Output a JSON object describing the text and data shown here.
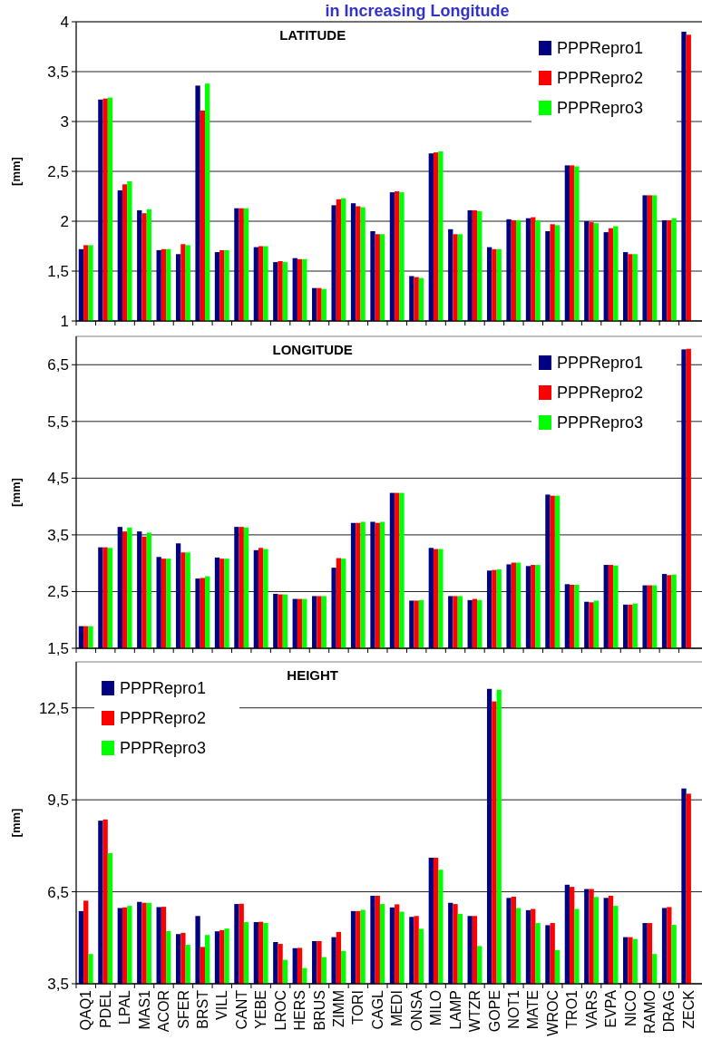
{
  "chart_data": [
    {
      "type": "bar",
      "title": "LATITUDE",
      "ylabel": "[mm]",
      "annotations": [
        "in Increasing Longitude"
      ],
      "categories": [
        null,
        null,
        null,
        null,
        null,
        null,
        null,
        null,
        null,
        null,
        null,
        null,
        null,
        null,
        null,
        null,
        null,
        null,
        null,
        null,
        null,
        null,
        null,
        null,
        null,
        null,
        null,
        null,
        null,
        null,
        null,
        null
      ],
      "series": [
        {
          "name": "PPPRepro1",
          "color": "#000080",
          "values": [
            1.72,
            3.22,
            2.31,
            2.11,
            1.71,
            1.67,
            3.36,
            1.69,
            2.13,
            1.74,
            1.59,
            1.63,
            1.33,
            2.16,
            2.18,
            1.9,
            2.29,
            1.45,
            2.68,
            1.92,
            2.11,
            1.74,
            2.02,
            2.03,
            1.9,
            2.56,
            2.0,
            1.89,
            1.69,
            2.26,
            2.01,
            3.9
          ]
        },
        {
          "name": "PPPRepro2",
          "color": "#ff0000",
          "values": [
            1.76,
            3.23,
            2.37,
            2.08,
            1.72,
            1.77,
            3.11,
            1.71,
            2.13,
            1.75,
            1.6,
            1.62,
            1.33,
            2.22,
            2.15,
            1.87,
            2.3,
            1.44,
            2.69,
            1.87,
            2.11,
            1.72,
            2.01,
            2.04,
            1.97,
            2.56,
            1.99,
            1.93,
            1.67,
            2.26,
            2.01,
            3.87
          ]
        },
        {
          "name": "PPPRepro3",
          "color": "#00ff00",
          "values": [
            1.76,
            3.24,
            2.4,
            2.12,
            1.72,
            1.76,
            3.38,
            1.71,
            2.13,
            1.75,
            1.59,
            1.62,
            1.32,
            2.23,
            2.14,
            1.87,
            2.29,
            1.43,
            2.7,
            1.87,
            2.1,
            1.72,
            2.01,
            2.01,
            1.96,
            2.55,
            1.98,
            1.95,
            1.67,
            2.26,
            2.03,
            null
          ]
        }
      ],
      "ylim": [
        1,
        4
      ],
      "yticks": [
        1,
        {
          "value": 1.5,
          "label": "1,5"
        },
        2,
        {
          "value": 2.5,
          "label": "2,5"
        },
        3,
        {
          "value": 3.5,
          "label": "3,5"
        },
        4
      ],
      "grid": "y",
      "legend": "top right"
    },
    {
      "type": "bar",
      "title": "LONGITUDE",
      "ylabel": "[mm]",
      "categories": [
        null,
        null,
        null,
        null,
        null,
        null,
        null,
        null,
        null,
        null,
        null,
        null,
        null,
        null,
        null,
        null,
        null,
        null,
        null,
        null,
        null,
        null,
        null,
        null,
        null,
        null,
        null,
        null,
        null,
        null,
        null,
        null
      ],
      "series": [
        {
          "name": "PPPRepro1",
          "color": "#000080",
          "values": [
            1.89,
            3.28,
            3.64,
            3.56,
            3.11,
            3.35,
            2.73,
            3.1,
            3.64,
            3.23,
            2.46,
            2.37,
            2.42,
            2.92,
            3.71,
            3.73,
            4.24,
            2.34,
            3.27,
            2.42,
            2.35,
            2.87,
            2.98,
            2.95,
            4.21,
            2.63,
            2.32,
            2.97,
            2.27,
            2.61,
            2.81,
            6.77
          ]
        },
        {
          "name": "PPPRepro2",
          "color": "#ff0000",
          "values": [
            1.89,
            3.28,
            3.56,
            3.47,
            3.08,
            3.19,
            2.74,
            3.08,
            3.64,
            3.27,
            2.45,
            2.37,
            2.42,
            3.09,
            3.71,
            3.71,
            4.24,
            2.34,
            3.25,
            2.42,
            2.37,
            2.88,
            3.01,
            2.97,
            4.19,
            2.62,
            2.31,
            2.97,
            2.27,
            2.61,
            2.79,
            6.78
          ]
        },
        {
          "name": "PPPRepro3",
          "color": "#00ff00",
          "values": [
            1.89,
            3.27,
            3.63,
            3.54,
            3.08,
            3.19,
            2.77,
            3.08,
            3.63,
            3.25,
            2.45,
            2.37,
            2.42,
            3.08,
            3.73,
            3.73,
            4.24,
            2.35,
            3.25,
            2.42,
            2.35,
            2.89,
            3.01,
            2.97,
            4.19,
            2.62,
            2.34,
            2.96,
            2.29,
            2.61,
            2.8,
            null
          ]
        }
      ],
      "ylim": [
        1.5,
        7
      ],
      "yticks": [
        {
          "value": 1.5,
          "label": "1,5"
        },
        {
          "value": 2.5,
          "label": "2,5"
        },
        {
          "value": 3.5,
          "label": "3,5"
        },
        {
          "value": 4.5,
          "label": "4,5"
        },
        {
          "value": 5.5,
          "label": "5,5"
        },
        {
          "value": 6.5,
          "label": "6,5"
        }
      ],
      "grid": "y",
      "legend": "top right"
    },
    {
      "type": "bar",
      "title": "HEIGHT",
      "ylabel": "[mm]",
      "categories": [
        "QAQ1",
        "PDEL",
        "LPAL",
        "MAS1",
        "ACOR",
        "SFER",
        "BRST",
        "VILL",
        "CANT",
        "YEBE",
        "LROC",
        "HERS",
        "BRUS",
        "ZIMM",
        "TORI",
        "CAGL",
        "MEDI",
        "ONSA",
        "MILO",
        "LAMP",
        "WTZR",
        "GOPE",
        "NOT1",
        "MATE",
        "WROC",
        "TRO1",
        "VARS",
        "EVPA",
        "NICO",
        "RAMO",
        "DRAG",
        "ZECK"
      ],
      "series": [
        {
          "name": "PPPRepro1",
          "color": "#000080",
          "values": [
            5.87,
            8.82,
            5.97,
            6.17,
            6.0,
            5.12,
            5.71,
            5.21,
            6.1,
            5.51,
            4.86,
            4.66,
            4.89,
            5.02,
            5.87,
            6.37,
            5.99,
            5.68,
            7.61,
            6.14,
            5.71,
            13.12,
            6.3,
            5.9,
            5.41,
            6.73,
            6.59,
            6.3,
            5.02,
            5.48,
            5.97,
            9.87
          ]
        },
        {
          "name": "PPPRepro2",
          "color": "#ff0000",
          "values": [
            6.21,
            8.86,
            5.99,
            6.14,
            6.01,
            5.16,
            4.7,
            5.25,
            6.11,
            5.52,
            4.8,
            4.67,
            4.89,
            5.19,
            5.87,
            6.37,
            6.09,
            5.71,
            7.61,
            6.1,
            5.71,
            12.71,
            6.34,
            5.94,
            5.48,
            6.66,
            6.59,
            6.37,
            5.02,
            5.48,
            6.0,
            9.7
          ]
        },
        {
          "name": "PPPRepro3",
          "color": "#00ff00",
          "values": [
            4.47,
            7.76,
            6.04,
            6.14,
            5.22,
            4.77,
            5.09,
            5.3,
            5.51,
            5.48,
            4.28,
            4.01,
            4.37,
            4.57,
            5.91,
            6.1,
            5.85,
            5.29,
            7.22,
            5.78,
            4.73,
            13.09,
            5.97,
            5.48,
            4.6,
            5.94,
            6.33,
            6.04,
            4.96,
            4.47,
            5.42,
            null
          ]
        }
      ],
      "ylim": [
        3.5,
        14
      ],
      "yticks": [
        {
          "value": 3.5,
          "label": "3,5"
        },
        {
          "value": 6.5,
          "label": "6,5"
        },
        {
          "value": 9.5,
          "label": "9,5"
        },
        {
          "value": 12.5,
          "label": "12,5"
        }
      ],
      "grid": "y",
      "legend": "top left"
    }
  ]
}
